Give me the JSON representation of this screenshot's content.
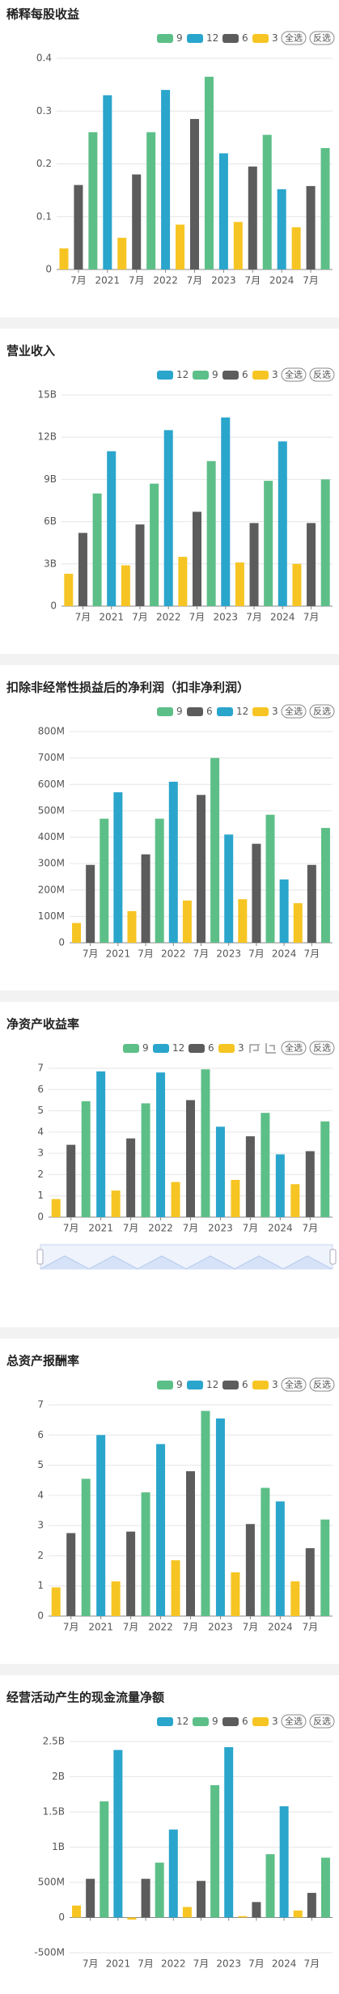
{
  "chart_data": [
    {
      "type": "bar",
      "title": "稀释每股收益",
      "legend_buttons": [
        "全选",
        "反选"
      ],
      "grid": true,
      "categories": [
        null,
        "7月",
        null,
        "2021",
        null,
        "7月",
        null,
        "2022",
        null,
        "7月",
        null,
        "2023",
        null,
        "7月",
        null,
        "2024",
        null,
        "7月",
        null
      ],
      "ylim": [
        0,
        0.4
      ],
      "yticks": [
        0,
        0.1,
        0.2,
        0.3,
        0.4
      ],
      "series": [
        {
          "name": "9",
          "color": "#5dbf88",
          "values": [
            null,
            null,
            0.26,
            null,
            null,
            null,
            0.26,
            null,
            null,
            null,
            0.365,
            null,
            null,
            null,
            0.255,
            null,
            null,
            null,
            0.23
          ]
        },
        {
          "name": "12",
          "color": "#2aa5cc",
          "values": [
            null,
            null,
            null,
            0.33,
            null,
            null,
            null,
            0.34,
            null,
            null,
            null,
            0.22,
            null,
            null,
            null,
            0.152,
            null,
            null,
            null
          ]
        },
        {
          "name": "6",
          "color": "#5c5c5c",
          "values": [
            null,
            0.16,
            null,
            null,
            null,
            0.18,
            null,
            null,
            null,
            0.285,
            null,
            null,
            null,
            0.195,
            null,
            null,
            null,
            0.158,
            null
          ]
        },
        {
          "name": "3",
          "color": "#f6c523",
          "values": [
            0.04,
            null,
            null,
            null,
            0.06,
            null,
            null,
            null,
            0.085,
            null,
            null,
            null,
            0.09,
            null,
            null,
            null,
            0.08,
            null,
            null
          ]
        }
      ]
    },
    {
      "type": "bar",
      "title": "营业收入",
      "legend_buttons": [
        "全选",
        "反选"
      ],
      "grid": true,
      "categories": [
        null,
        "7月",
        null,
        "2021",
        null,
        "7月",
        null,
        "2022",
        null,
        "7月",
        null,
        "2023",
        null,
        "7月",
        null,
        "2024",
        null,
        "7月",
        null
      ],
      "ylim": [
        0,
        15
      ],
      "yticks": [
        0,
        {
          "value": 3,
          "label": "3B"
        },
        {
          "value": 6,
          "label": "6B"
        },
        {
          "value": 9,
          "label": "9B"
        },
        {
          "value": 12,
          "label": "12B"
        },
        {
          "value": 15,
          "label": "15B"
        }
      ],
      "series": [
        {
          "name": "12",
          "color": "#2aa5cc",
          "values": [
            null,
            null,
            null,
            11.0,
            null,
            null,
            null,
            12.5,
            null,
            null,
            null,
            13.4,
            null,
            null,
            null,
            11.7,
            null,
            null,
            null
          ]
        },
        {
          "name": "9",
          "color": "#5dbf88",
          "values": [
            null,
            null,
            8.0,
            null,
            null,
            null,
            8.7,
            null,
            null,
            null,
            10.3,
            null,
            null,
            null,
            8.9,
            null,
            null,
            null,
            9.0
          ]
        },
        {
          "name": "6",
          "color": "#5c5c5c",
          "values": [
            null,
            5.2,
            null,
            null,
            null,
            5.8,
            null,
            null,
            null,
            6.7,
            null,
            null,
            null,
            5.9,
            null,
            null,
            null,
            5.9,
            null
          ]
        },
        {
          "name": "3",
          "color": "#f6c523",
          "values": [
            2.3,
            null,
            null,
            null,
            2.9,
            null,
            null,
            null,
            3.5,
            null,
            null,
            null,
            3.1,
            null,
            null,
            null,
            3.0,
            null,
            null
          ]
        }
      ]
    },
    {
      "type": "bar",
      "title": "扣除非经常性损益后的净利润（扣非净利润）",
      "legend_buttons": [
        "全选",
        "反选"
      ],
      "grid": true,
      "categories": [
        null,
        "7月",
        null,
        "2021",
        null,
        "7月",
        null,
        "2022",
        null,
        "7月",
        null,
        "2023",
        null,
        "7月",
        null,
        "2024",
        null,
        "7月",
        null
      ],
      "ylim": [
        0,
        800
      ],
      "yticks": [
        0,
        {
          "value": 100,
          "label": "100M"
        },
        {
          "value": 200,
          "label": "200M"
        },
        {
          "value": 300,
          "label": "300M"
        },
        {
          "value": 400,
          "label": "400M"
        },
        {
          "value": 500,
          "label": "500M"
        },
        {
          "value": 600,
          "label": "600M"
        },
        {
          "value": 700,
          "label": "700M"
        },
        {
          "value": 800,
          "label": "800M"
        }
      ],
      "series": [
        {
          "name": "9",
          "color": "#5dbf88",
          "values": [
            null,
            null,
            470,
            null,
            null,
            null,
            470,
            null,
            null,
            null,
            700,
            null,
            null,
            null,
            485,
            null,
            null,
            null,
            435
          ]
        },
        {
          "name": "6",
          "color": "#5c5c5c",
          "values": [
            null,
            295,
            null,
            null,
            null,
            335,
            null,
            null,
            null,
            560,
            null,
            null,
            null,
            375,
            null,
            null,
            null,
            295,
            null
          ]
        },
        {
          "name": "12",
          "color": "#2aa5cc",
          "values": [
            null,
            null,
            null,
            570,
            null,
            null,
            null,
            610,
            null,
            null,
            null,
            410,
            null,
            null,
            null,
            240,
            null,
            null,
            null
          ]
        },
        {
          "name": "3",
          "color": "#f6c523",
          "values": [
            75,
            null,
            null,
            null,
            120,
            null,
            null,
            null,
            160,
            null,
            null,
            null,
            165,
            null,
            null,
            null,
            150,
            null,
            null
          ]
        }
      ]
    },
    {
      "type": "bar",
      "title": "净资产收益率",
      "legend_buttons": [
        "全选",
        "反选"
      ],
      "grid": true,
      "zoom_slider": true,
      "categories": [
        null,
        "7月",
        null,
        "2021",
        null,
        "7月",
        null,
        "2022",
        null,
        "7月",
        null,
        "2023",
        null,
        "7月",
        null,
        "2024",
        null,
        "7月",
        null
      ],
      "ylim": [
        0,
        7
      ],
      "yticks": [
        0,
        1,
        2,
        3,
        4,
        5,
        6,
        7
      ],
      "series": [
        {
          "name": "9",
          "color": "#5dbf88",
          "values": [
            null,
            null,
            5.45,
            null,
            null,
            null,
            5.35,
            null,
            null,
            null,
            6.95,
            null,
            null,
            null,
            4.9,
            null,
            null,
            null,
            4.5
          ]
        },
        {
          "name": "12",
          "color": "#2aa5cc",
          "values": [
            null,
            null,
            null,
            6.85,
            null,
            null,
            null,
            6.8,
            null,
            null,
            null,
            4.25,
            null,
            null,
            null,
            2.95,
            null,
            null,
            null
          ]
        },
        {
          "name": "6",
          "color": "#5c5c5c",
          "values": [
            null,
            3.4,
            null,
            null,
            null,
            3.7,
            null,
            null,
            null,
            5.5,
            null,
            null,
            null,
            3.8,
            null,
            null,
            null,
            3.1,
            null
          ]
        },
        {
          "name": "3",
          "color": "#f6c523",
          "values": [
            0.85,
            null,
            null,
            null,
            1.25,
            null,
            null,
            null,
            1.65,
            null,
            null,
            null,
            1.75,
            null,
            null,
            null,
            1.55,
            null,
            null
          ]
        }
      ]
    },
    {
      "type": "bar",
      "title": "总资产报酬率",
      "legend_buttons": [
        "全选",
        "反选"
      ],
      "grid": true,
      "categories": [
        null,
        "7月",
        null,
        "2021",
        null,
        "7月",
        null,
        "2022",
        null,
        "7月",
        null,
        "2023",
        null,
        "7月",
        null,
        "2024",
        null,
        "7月",
        null
      ],
      "ylim": [
        0,
        7
      ],
      "yticks": [
        0,
        1,
        2,
        3,
        4,
        5,
        6,
        7
      ],
      "series": [
        {
          "name": "9",
          "color": "#5dbf88",
          "values": [
            null,
            null,
            4.55,
            null,
            null,
            null,
            4.1,
            null,
            null,
            null,
            6.8,
            null,
            null,
            null,
            4.25,
            null,
            null,
            null,
            3.2
          ]
        },
        {
          "name": "12",
          "color": "#2aa5cc",
          "values": [
            null,
            null,
            null,
            6.0,
            null,
            null,
            null,
            5.7,
            null,
            null,
            null,
            6.55,
            null,
            null,
            null,
            3.8,
            null,
            null,
            null
          ]
        },
        {
          "name": "6",
          "color": "#5c5c5c",
          "values": [
            null,
            2.75,
            null,
            null,
            null,
            2.8,
            null,
            null,
            null,
            4.8,
            null,
            null,
            null,
            3.05,
            null,
            null,
            null,
            2.25,
            null
          ]
        },
        {
          "name": "3",
          "color": "#f6c523",
          "values": [
            0.95,
            null,
            null,
            null,
            1.15,
            null,
            null,
            null,
            1.85,
            null,
            null,
            null,
            1.45,
            null,
            null,
            null,
            1.15,
            null,
            null
          ]
        }
      ]
    },
    {
      "type": "bar",
      "title": "经营活动产生的现金流量净额",
      "legend_buttons": [
        "全选",
        "反选"
      ],
      "grid": true,
      "categories": [
        null,
        "7月",
        null,
        "2021",
        null,
        "7月",
        null,
        "2022",
        null,
        "7月",
        null,
        "2023",
        null,
        "7月",
        null,
        "2024",
        null,
        "7月",
        null
      ],
      "ylim": [
        -0.5,
        2.5
      ],
      "yticks": [
        {
          "value": -0.5,
          "label": "-500M"
        },
        0,
        {
          "value": 0.5,
          "label": "500M"
        },
        {
          "value": 1,
          "label": "1B"
        },
        {
          "value": 1.5,
          "label": "1.5B"
        },
        {
          "value": 2,
          "label": "2B"
        },
        {
          "value": 2.5,
          "label": "2.5B"
        }
      ],
      "series": [
        {
          "name": "12",
          "color": "#2aa5cc",
          "values": [
            null,
            null,
            null,
            2.38,
            null,
            null,
            null,
            1.25,
            null,
            null,
            null,
            2.42,
            null,
            null,
            null,
            1.58,
            null,
            null,
            null
          ]
        },
        {
          "name": "9",
          "color": "#5dbf88",
          "values": [
            null,
            null,
            1.65,
            null,
            null,
            null,
            0.78,
            null,
            null,
            null,
            1.88,
            null,
            null,
            null,
            0.9,
            null,
            null,
            null,
            0.85
          ]
        },
        {
          "name": "6",
          "color": "#5c5c5c",
          "values": [
            null,
            0.55,
            null,
            null,
            null,
            0.55,
            null,
            null,
            null,
            0.52,
            null,
            null,
            null,
            0.22,
            null,
            null,
            null,
            0.35,
            null
          ]
        },
        {
          "name": "3",
          "color": "#f6c523",
          "values": [
            0.17,
            null,
            null,
            null,
            -0.03,
            null,
            null,
            null,
            0.15,
            null,
            null,
            null,
            0.02,
            null,
            null,
            null,
            0.1,
            null,
            null
          ]
        }
      ]
    }
  ]
}
